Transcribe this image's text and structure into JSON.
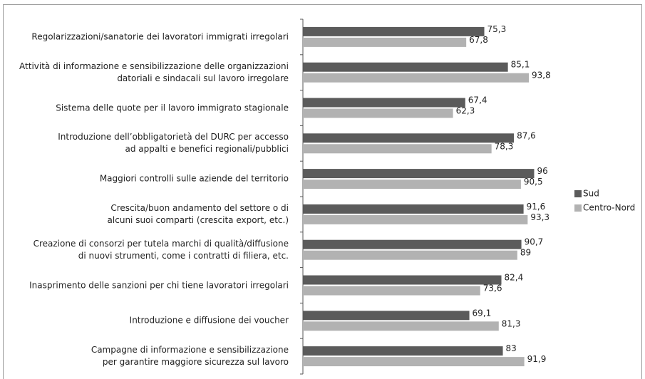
{
  "chart_data": {
    "type": "hbar",
    "categories": [
      "Regolarizzazioni/sanatorie dei lavoratori immigrati irregolari",
      "Attività di informazione e sensibilizzazione delle organizzazioni\ndatoriali e sindacali sul lavoro irregolare",
      "Sistema delle quote per il lavoro immigrato stagionale",
      "Introduzione dell’obbligatorietà del DURC per accesso\nad appalti e benefici regionali/pubblici",
      "Maggiori controlli sulle aziende del territorio",
      "Crescita/buon andamento del settore o di\nalcuni suoi comparti (crescita export, etc.)",
      "Creazione di consorzi per tutela marchi di qualità/diffusione\ndi nuovi strumenti, come i contratti di filiera, etc.",
      "Inasprimento delle sanzioni per chi tiene lavoratori irregolari",
      "Introduzione e diffusione dei voucher",
      "Campagne di informazione e sensibilizzazione\nper garantire maggiore sicurezza sul lavoro"
    ],
    "series": [
      {
        "name": "Sud",
        "color": "#5b5b5b",
        "values": [
          75.3,
          85.1,
          67.4,
          87.6,
          96,
          91.6,
          90.7,
          82.4,
          69.1,
          83
        ],
        "value_labels": [
          "75,3",
          "85,1",
          "67,4",
          "87,6",
          "96",
          "91,6",
          "90,7",
          "82,4",
          "69,1",
          "83"
        ]
      },
      {
        "name": "Centro-Nord",
        "color": "#b2b2b2",
        "values": [
          67.8,
          93.8,
          62.3,
          78.3,
          90.5,
          93.3,
          89,
          73.6,
          81.3,
          91.9
        ],
        "value_labels": [
          "67,8",
          "93,8",
          "62,3",
          "78,3",
          "90,5",
          "93,3",
          "89",
          "73,6",
          "81,3",
          "91,9"
        ]
      }
    ],
    "legend": "right"
  }
}
